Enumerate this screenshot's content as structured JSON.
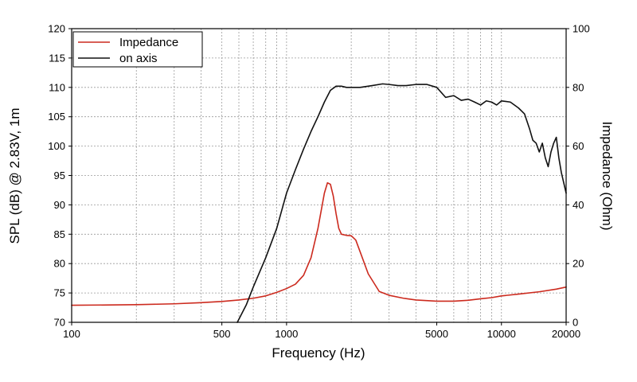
{
  "chart_data": {
    "type": "line",
    "xlabel": "Frequency (Hz)",
    "ylabel": "SPL (dB) @ 2.83V, 1m",
    "y2label": "Impedance (Ohm)",
    "x_scale": "log",
    "xlim": [
      100,
      20000
    ],
    "ylim": [
      70,
      120
    ],
    "y2lim": [
      0,
      100
    ],
    "grid": true,
    "legend_position": "top-left",
    "x_ticks": [
      {
        "value": 100,
        "label": "100"
      },
      {
        "value": 500,
        "label": "500"
      },
      {
        "value": 1000,
        "label": "1000"
      },
      {
        "value": 5000,
        "label": "5000"
      },
      {
        "value": 10000,
        "label": "10000"
      },
      {
        "value": 20000,
        "label": "20000"
      }
    ],
    "x_grid": [
      200,
      300,
      400,
      500,
      600,
      700,
      800,
      900,
      1000,
      2000,
      3000,
      4000,
      5000,
      6000,
      7000,
      8000,
      9000,
      10000
    ],
    "y_ticks": [
      "70",
      "75",
      "80",
      "85",
      "90",
      "95",
      "100",
      "105",
      "110",
      "115",
      "120"
    ],
    "y2_ticks": [
      "0",
      "20",
      "40",
      "60",
      "80",
      "100"
    ],
    "series": [
      {
        "name": "Impedance",
        "axis": "right",
        "color": "#cc2a1e",
        "x": [
          100,
          200,
          300,
          400,
          500,
          600,
          700,
          800,
          900,
          1000,
          1100,
          1200,
          1300,
          1400,
          1500,
          1550,
          1600,
          1650,
          1700,
          1750,
          1800,
          1900,
          2000,
          2100,
          2200,
          2400,
          2700,
          3000,
          3500,
          4000,
          5000,
          6000,
          7000,
          8000,
          9000,
          10000,
          12000,
          15000,
          18000,
          20000
        ],
        "y": [
          5.8,
          6.0,
          6.3,
          6.7,
          7.1,
          7.6,
          8.2,
          9.0,
          10.2,
          11.5,
          13.0,
          16.0,
          22.0,
          32.0,
          44.0,
          47.5,
          47.0,
          43.0,
          37.0,
          32.0,
          30.0,
          29.6,
          29.5,
          28.0,
          24.0,
          16.5,
          10.5,
          9.2,
          8.2,
          7.6,
          7.2,
          7.2,
          7.5,
          8.0,
          8.4,
          9.0,
          9.6,
          10.4,
          11.3,
          12.0
        ]
      },
      {
        "name": "on axis",
        "axis": "left",
        "color": "#111111",
        "x": [
          590,
          650,
          700,
          800,
          900,
          1000,
          1100,
          1200,
          1300,
          1400,
          1500,
          1600,
          1700,
          1800,
          1900,
          2000,
          2200,
          2500,
          2800,
          3000,
          3300,
          3600,
          4000,
          4500,
          5000,
          5500,
          6000,
          6500,
          7000,
          7500,
          8000,
          8500,
          9000,
          9500,
          10000,
          11000,
          12000,
          12800,
          13500,
          14000,
          14500,
          15000,
          15500,
          16000,
          16500,
          17000,
          17500,
          18000,
          18500,
          19000,
          20000
        ],
        "y": [
          70,
          73,
          76,
          81,
          86,
          92,
          96,
          99.5,
          102.5,
          105,
          107.5,
          109.5,
          110.2,
          110.2,
          110,
          110,
          110,
          110.3,
          110.6,
          110.5,
          110.3,
          110.3,
          110.5,
          110.5,
          110,
          108.3,
          108.6,
          107.8,
          108,
          107.5,
          107,
          107.7,
          107.5,
          107,
          107.7,
          107.5,
          106.5,
          105.5,
          103,
          101,
          100.5,
          99,
          100.5,
          98,
          96.5,
          99,
          100.5,
          101.5,
          98,
          95.5,
          92
        ]
      }
    ]
  }
}
